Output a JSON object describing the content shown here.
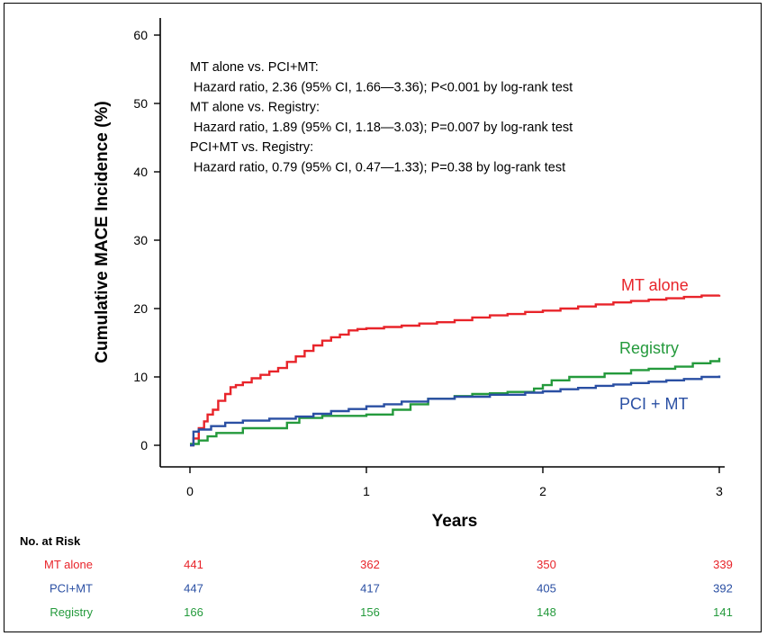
{
  "chart_data": {
    "type": "line",
    "step": true,
    "title": "",
    "xlabel": "Years",
    "ylabel": "Cumulative MACE Incidence (%)",
    "xlim": [
      0,
      3
    ],
    "ylim": [
      0,
      60
    ],
    "x_ticks": [
      0,
      1,
      2,
      3
    ],
    "y_ticks": [
      0,
      10,
      20,
      30,
      40,
      50,
      60
    ],
    "grid": false,
    "annotations": [
      "MT alone vs. PCI+MT:",
      " Hazard ratio, 2.36 (95% CI, 1.66—3.36); P<0.001 by log-rank test",
      "MT alone vs. Registry:",
      " Hazard ratio, 1.89 (95% CI, 1.18—3.03); P=0.007 by log-rank test",
      "PCI+MT vs. Registry:",
      " Hazard ratio, 0.79 (95% CI, 0.47—1.33); P=0.38 by log-rank test"
    ],
    "series": [
      {
        "name": "MT alone",
        "color": "#e8242a",
        "x": [
          0,
          0.02,
          0.05,
          0.08,
          0.1,
          0.13,
          0.16,
          0.2,
          0.23,
          0.26,
          0.3,
          0.35,
          0.4,
          0.45,
          0.5,
          0.55,
          0.6,
          0.65,
          0.7,
          0.75,
          0.8,
          0.85,
          0.9,
          0.95,
          1.0,
          1.1,
          1.2,
          1.3,
          1.4,
          1.5,
          1.6,
          1.7,
          1.8,
          1.9,
          2.0,
          2.1,
          2.2,
          2.3,
          2.4,
          2.5,
          2.6,
          2.7,
          2.8,
          2.9,
          3.0
        ],
        "y": [
          0,
          1,
          2.5,
          3.5,
          4.5,
          5.2,
          6.5,
          7.5,
          8.5,
          8.8,
          9.2,
          9.8,
          10.3,
          10.8,
          11.3,
          12.2,
          13.0,
          13.8,
          14.6,
          15.3,
          15.8,
          16.2,
          16.8,
          17.0,
          17.1,
          17.3,
          17.5,
          17.8,
          18.0,
          18.3,
          18.7,
          19.0,
          19.2,
          19.5,
          19.7,
          20.0,
          20.3,
          20.6,
          20.9,
          21.1,
          21.3,
          21.5,
          21.7,
          21.9,
          22.0
        ]
      },
      {
        "name": "Registry",
        "color": "#249a3c",
        "x": [
          0,
          0.05,
          0.1,
          0.15,
          0.3,
          0.55,
          0.62,
          0.75,
          1.0,
          1.15,
          1.25,
          1.35,
          1.5,
          1.6,
          1.7,
          1.8,
          1.9,
          1.95,
          2.0,
          2.05,
          2.15,
          2.35,
          2.5,
          2.6,
          2.75,
          2.85,
          2.95,
          3.0
        ],
        "y": [
          0.2,
          0.7,
          1.3,
          1.8,
          2.5,
          3.3,
          4.0,
          4.3,
          4.5,
          5.2,
          6.0,
          6.8,
          7.2,
          7.5,
          7.6,
          7.8,
          7.8,
          8.3,
          8.8,
          9.5,
          10.0,
          10.5,
          11.0,
          11.2,
          11.5,
          12.0,
          12.3,
          12.8
        ]
      },
      {
        "name": "PCI + MT",
        "color": "#2a4fa3",
        "x": [
          0,
          0.02,
          0.05,
          0.12,
          0.2,
          0.3,
          0.45,
          0.6,
          0.7,
          0.8,
          0.9,
          1.0,
          1.1,
          1.2,
          1.35,
          1.5,
          1.7,
          1.9,
          2.0,
          2.1,
          2.2,
          2.3,
          2.4,
          2.5,
          2.6,
          2.7,
          2.8,
          2.9,
          3.0
        ],
        "y": [
          0,
          2.0,
          2.3,
          2.8,
          3.3,
          3.6,
          3.9,
          4.2,
          4.6,
          5.0,
          5.3,
          5.7,
          6.0,
          6.4,
          6.8,
          7.1,
          7.4,
          7.7,
          7.9,
          8.2,
          8.4,
          8.7,
          8.9,
          9.1,
          9.3,
          9.5,
          9.7,
          10.0,
          10.2
        ]
      }
    ]
  },
  "risk_table": {
    "header": "No. at Risk",
    "rows": [
      {
        "label": "MT alone",
        "color": "#e8242a",
        "values": [
          "441",
          "362",
          "350",
          "339"
        ]
      },
      {
        "label": "PCI+MT",
        "color": "#2a4fa3",
        "values": [
          "447",
          "417",
          "405",
          "392"
        ]
      },
      {
        "label": "Registry",
        "color": "#249a3c",
        "values": [
          "166",
          "156",
          "148",
          "141"
        ]
      }
    ]
  }
}
